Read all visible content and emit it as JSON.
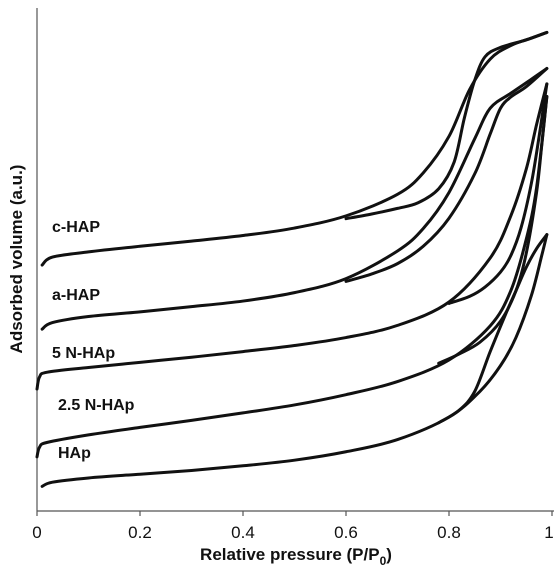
{
  "chart_data": {
    "type": "line",
    "xlabel": "Relative pressure (P/P",
    "xlabel_sub": "0",
    "xlabel_close": ")",
    "ylabel": "Adsorbed volume (a.u.)",
    "xlim": [
      0,
      1
    ],
    "ylim": [
      0,
      100
    ],
    "x_ticks": [
      "0",
      "0.2",
      "0.4",
      "0.6",
      "0.8",
      "1"
    ],
    "x_tick_values": [
      0,
      0.2,
      0.4,
      0.6,
      0.8,
      1
    ],
    "y_ticks_shown": false,
    "grid": false,
    "legend": "none",
    "series": [
      {
        "name": "c-HAP",
        "adsorption": [
          [
            0.01,
            48.5
          ],
          [
            0.03,
            50.2
          ],
          [
            0.1,
            51.3
          ],
          [
            0.2,
            52.5
          ],
          [
            0.3,
            53.6
          ],
          [
            0.4,
            54.8
          ],
          [
            0.5,
            56.4
          ],
          [
            0.6,
            59.0
          ],
          [
            0.7,
            63.6
          ],
          [
            0.75,
            68.2
          ],
          [
            0.8,
            76.0
          ],
          [
            0.84,
            86.0
          ],
          [
            0.88,
            92.5
          ],
          [
            0.92,
            95.4
          ],
          [
            0.96,
            97.0
          ],
          [
            0.99,
            98.2
          ]
        ],
        "desorption": [
          [
            0.99,
            98.2
          ],
          [
            0.95,
            96.6
          ],
          [
            0.9,
            95.0
          ],
          [
            0.87,
            93.0
          ],
          [
            0.85,
            88.0
          ],
          [
            0.83,
            80.0
          ],
          [
            0.81,
            70.5
          ],
          [
            0.78,
            64.8
          ],
          [
            0.74,
            61.8
          ],
          [
            0.7,
            60.6
          ],
          [
            0.65,
            59.4
          ],
          [
            0.6,
            58.4
          ]
        ]
      },
      {
        "name": "a-HAP",
        "adsorption": [
          [
            0.01,
            34.8
          ],
          [
            0.03,
            36.2
          ],
          [
            0.1,
            37.5
          ],
          [
            0.2,
            38.5
          ],
          [
            0.3,
            39.6
          ],
          [
            0.4,
            40.8
          ],
          [
            0.5,
            42.6
          ],
          [
            0.6,
            45.6
          ],
          [
            0.7,
            51.5
          ],
          [
            0.75,
            56.3
          ],
          [
            0.8,
            64.0
          ],
          [
            0.85,
            75.5
          ],
          [
            0.88,
            82.0
          ],
          [
            0.92,
            85.2
          ],
          [
            0.96,
            88.2
          ],
          [
            0.99,
            90.5
          ]
        ],
        "desorption": [
          [
            0.99,
            90.5
          ],
          [
            0.95,
            86.6
          ],
          [
            0.92,
            84.4
          ],
          [
            0.9,
            82.0
          ],
          [
            0.88,
            76.5
          ],
          [
            0.85,
            68.0
          ],
          [
            0.8,
            58.5
          ],
          [
            0.75,
            52.5
          ],
          [
            0.7,
            48.8
          ],
          [
            0.65,
            46.6
          ],
          [
            0.6,
            45.0
          ]
        ]
      },
      {
        "name": "5 N-HAp",
        "adsorption": [
          [
            0.0,
            22.0
          ],
          [
            0.005,
            24.6
          ],
          [
            0.02,
            25.6
          ],
          [
            0.1,
            26.6
          ],
          [
            0.2,
            27.7
          ],
          [
            0.3,
            28.8
          ],
          [
            0.4,
            30.0
          ],
          [
            0.5,
            31.3
          ],
          [
            0.6,
            33.0
          ],
          [
            0.7,
            35.6
          ],
          [
            0.8,
            40.6
          ],
          [
            0.88,
            50.0
          ],
          [
            0.92,
            59.0
          ],
          [
            0.95,
            69.0
          ],
          [
            0.97,
            78.5
          ],
          [
            0.99,
            87.2
          ]
        ],
        "desorption": [
          [
            0.99,
            87.2
          ],
          [
            0.975,
            76.0
          ],
          [
            0.96,
            66.0
          ],
          [
            0.94,
            56.5
          ],
          [
            0.92,
            50.5
          ],
          [
            0.9,
            47.0
          ],
          [
            0.87,
            43.8
          ],
          [
            0.84,
            41.8
          ],
          [
            0.8,
            40.3
          ]
        ]
      },
      {
        "name": "2.5 N-HAp",
        "adsorption": [
          [
            0.0,
            7.5
          ],
          [
            0.005,
            9.6
          ],
          [
            0.02,
            10.6
          ],
          [
            0.1,
            12.2
          ],
          [
            0.2,
            13.8
          ],
          [
            0.3,
            15.3
          ],
          [
            0.4,
            16.9
          ],
          [
            0.5,
            18.6
          ],
          [
            0.6,
            20.8
          ],
          [
            0.7,
            23.6
          ],
          [
            0.8,
            28.2
          ],
          [
            0.88,
            35.5
          ],
          [
            0.92,
            43.0
          ],
          [
            0.95,
            54.0
          ],
          [
            0.97,
            65.0
          ],
          [
            0.99,
            84.5
          ]
        ],
        "desorption": [
          [
            0.99,
            84.5
          ],
          [
            0.98,
            74.0
          ],
          [
            0.97,
            64.0
          ],
          [
            0.95,
            51.0
          ],
          [
            0.93,
            43.0
          ],
          [
            0.9,
            36.5
          ],
          [
            0.86,
            32.0
          ],
          [
            0.82,
            29.5
          ],
          [
            0.78,
            27.5
          ]
        ]
      },
      {
        "name": "HAp",
        "adsorption": [
          [
            0.01,
            1.2
          ],
          [
            0.03,
            2.1
          ],
          [
            0.1,
            3.0
          ],
          [
            0.2,
            3.8
          ],
          [
            0.3,
            4.6
          ],
          [
            0.4,
            5.6
          ],
          [
            0.5,
            6.8
          ],
          [
            0.6,
            8.6
          ],
          [
            0.7,
            11.2
          ],
          [
            0.8,
            16.0
          ],
          [
            0.86,
            21.5
          ],
          [
            0.9,
            27.0
          ],
          [
            0.93,
            33.0
          ],
          [
            0.96,
            42.0
          ],
          [
            0.98,
            50.5
          ],
          [
            0.99,
            55.0
          ]
        ],
        "desorption": [
          [
            0.99,
            55.0
          ],
          [
            0.97,
            52.0
          ],
          [
            0.95,
            48.0
          ],
          [
            0.93,
            43.0
          ],
          [
            0.91,
            38.0
          ],
          [
            0.88,
            30.0
          ],
          [
            0.85,
            21.5
          ],
          [
            0.82,
            17.5
          ],
          [
            0.78,
            14.8
          ]
        ]
      }
    ],
    "annotations": [
      {
        "text": "c-HAP",
        "series": "c-HAP"
      },
      {
        "text": "a-HAP",
        "series": "a-HAP"
      },
      {
        "text": "5 N-HAp",
        "series": "5 N-HAp"
      },
      {
        "text": "2.5 N-HAp",
        "series": "2.5 N-HAp"
      },
      {
        "text": "HAp",
        "series": "HAp"
      }
    ]
  }
}
